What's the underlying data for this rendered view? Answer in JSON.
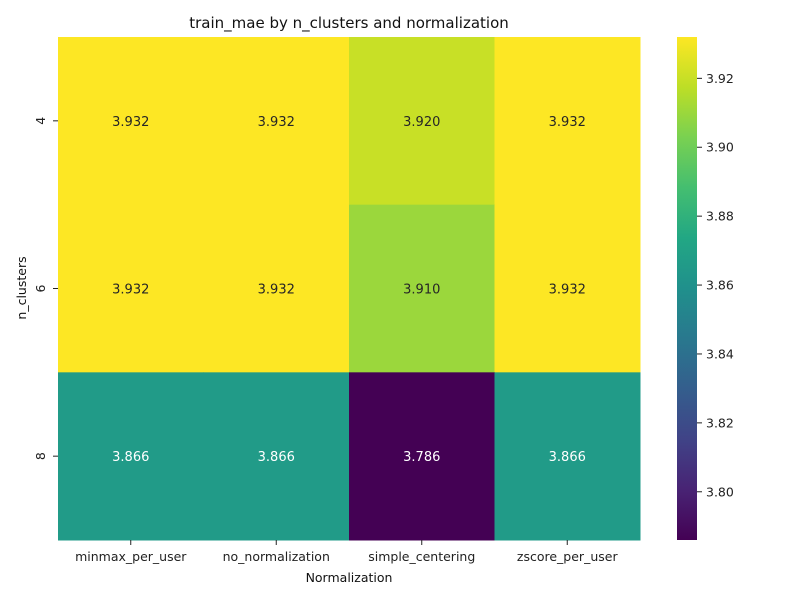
{
  "chart_data": {
    "type": "heatmap",
    "title": "train_mae by n_clusters and normalization",
    "xlabel": "Normalization",
    "ylabel": "n_clusters",
    "x_categories": [
      "minmax_per_user",
      "no_normalization",
      "simple_centering",
      "zscore_per_user"
    ],
    "y_categories": [
      "4",
      "6",
      "8"
    ],
    "values": [
      [
        3.932,
        3.932,
        3.92,
        3.932
      ],
      [
        3.932,
        3.932,
        3.91,
        3.932
      ],
      [
        3.866,
        3.866,
        3.786,
        3.866
      ]
    ],
    "value_labels": [
      [
        "3.932",
        "3.932",
        "3.920",
        "3.932"
      ],
      [
        "3.932",
        "3.932",
        "3.910",
        "3.932"
      ],
      [
        "3.866",
        "3.866",
        "3.786",
        "3.866"
      ]
    ],
    "colormap": "viridis",
    "color_range": [
      3.786,
      3.932
    ],
    "colorbar_ticks": [
      3.8,
      3.82,
      3.84,
      3.86,
      3.88,
      3.9,
      3.92
    ],
    "colorbar_tick_labels": [
      "3.80",
      "3.82",
      "3.84",
      "3.86",
      "3.88",
      "3.90",
      "3.92"
    ],
    "grid": false,
    "legend": "colorbar-right"
  }
}
